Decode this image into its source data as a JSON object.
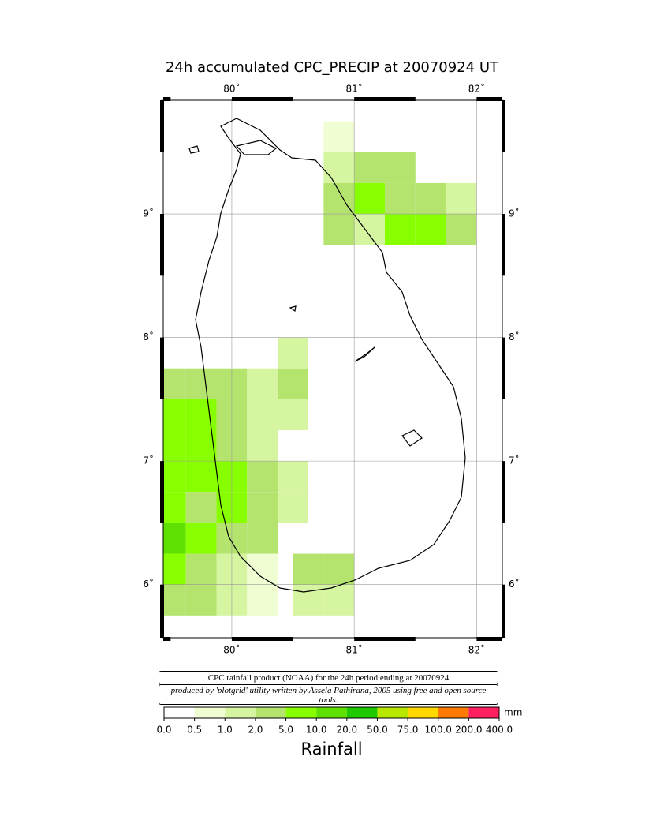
{
  "chart_data": {
    "type": "map",
    "title": "24h accumulated CPC_PRECIP  at 20070924 UT",
    "xlim": [
      79.44,
      82.21
    ],
    "ylim": [
      5.57,
      9.92
    ],
    "xticks": [
      {
        "value": 80,
        "label": "80˚"
      },
      {
        "value": 81,
        "label": "81˚"
      },
      {
        "value": 82,
        "label": "82˚"
      }
    ],
    "yticks": [
      {
        "value": 6,
        "label": "6˚"
      },
      {
        "value": 7,
        "label": "7˚"
      },
      {
        "value": 8,
        "label": "8˚"
      },
      {
        "value": 9,
        "label": "9˚"
      }
    ],
    "grid": true,
    "cell_size": 0.25,
    "rain_cells": [
      {
        "lon": 79.5,
        "lat": 7.625,
        "value": 3
      },
      {
        "lon": 79.75,
        "lat": 7.625,
        "value": 3
      },
      {
        "lon": 80.0,
        "lat": 7.625,
        "value": 2
      },
      {
        "lon": 80.25,
        "lat": 7.625,
        "value": 1
      },
      {
        "lon": 80.5,
        "lat": 7.625,
        "value": 2
      },
      {
        "lon": 80.5,
        "lat": 7.875,
        "value": 1
      },
      {
        "lon": 79.5,
        "lat": 7.375,
        "value": 5
      },
      {
        "lon": 79.75,
        "lat": 7.375,
        "value": 5
      },
      {
        "lon": 80.0,
        "lat": 7.375,
        "value": 3
      },
      {
        "lon": 80.25,
        "lat": 7.375,
        "value": 1.5
      },
      {
        "lon": 80.5,
        "lat": 7.375,
        "value": 1
      },
      {
        "lon": 79.5,
        "lat": 7.125,
        "value": 5
      },
      {
        "lon": 79.75,
        "lat": 7.125,
        "value": 5
      },
      {
        "lon": 80.0,
        "lat": 7.125,
        "value": 3
      },
      {
        "lon": 80.25,
        "lat": 7.125,
        "value": 1
      },
      {
        "lon": 79.5,
        "lat": 6.875,
        "value": 5
      },
      {
        "lon": 79.75,
        "lat": 6.875,
        "value": 5
      },
      {
        "lon": 80.0,
        "lat": 6.875,
        "value": 5
      },
      {
        "lon": 80.25,
        "lat": 6.875,
        "value": 2
      },
      {
        "lon": 80.5,
        "lat": 6.875,
        "value": 1
      },
      {
        "lon": 79.5,
        "lat": 6.625,
        "value": 5
      },
      {
        "lon": 79.75,
        "lat": 6.625,
        "value": 3
      },
      {
        "lon": 80.0,
        "lat": 6.625,
        "value": 5
      },
      {
        "lon": 80.25,
        "lat": 6.625,
        "value": 3
      },
      {
        "lon": 80.5,
        "lat": 6.625,
        "value": 1
      },
      {
        "lon": 79.5,
        "lat": 6.375,
        "value": 10
      },
      {
        "lon": 79.75,
        "lat": 6.375,
        "value": 5
      },
      {
        "lon": 80.0,
        "lat": 6.375,
        "value": 3
      },
      {
        "lon": 80.25,
        "lat": 6.375,
        "value": 2
      },
      {
        "lon": 79.5,
        "lat": 6.125,
        "value": 5
      },
      {
        "lon": 79.75,
        "lat": 6.125,
        "value": 2
      },
      {
        "lon": 80.0,
        "lat": 6.125,
        "value": 1
      },
      {
        "lon": 80.25,
        "lat": 6.125,
        "value": 0.8
      },
      {
        "lon": 79.5,
        "lat": 5.875,
        "value": 2
      },
      {
        "lon": 79.75,
        "lat": 5.875,
        "value": 2
      },
      {
        "lon": 80.0,
        "lat": 5.875,
        "value": 1
      },
      {
        "lon": 80.25,
        "lat": 5.875,
        "value": 0.8
      },
      {
        "lon": 80.875,
        "lat": 9.625,
        "value": 0.8
      },
      {
        "lon": 80.875,
        "lat": 9.375,
        "value": 1
      },
      {
        "lon": 81.125,
        "lat": 9.375,
        "value": 3
      },
      {
        "lon": 81.375,
        "lat": 9.375,
        "value": 2
      },
      {
        "lon": 80.875,
        "lat": 9.125,
        "value": 3
      },
      {
        "lon": 81.125,
        "lat": 9.125,
        "value": 5
      },
      {
        "lon": 81.375,
        "lat": 9.125,
        "value": 3
      },
      {
        "lon": 81.625,
        "lat": 9.125,
        "value": 2
      },
      {
        "lon": 81.875,
        "lat": 9.125,
        "value": 1.5
      },
      {
        "lon": 80.875,
        "lat": 8.875,
        "value": 2
      },
      {
        "lon": 81.125,
        "lat": 8.875,
        "value": 1
      },
      {
        "lon": 81.375,
        "lat": 8.875,
        "value": 5
      },
      {
        "lon": 81.625,
        "lat": 8.875,
        "value": 5
      },
      {
        "lon": 81.875,
        "lat": 8.875,
        "value": 2
      },
      {
        "lon": 80.625,
        "lat": 6.125,
        "value": 2
      },
      {
        "lon": 80.875,
        "lat": 6.125,
        "value": 2
      },
      {
        "lon": 80.625,
        "lat": 5.875,
        "value": 1
      },
      {
        "lon": 80.875,
        "lat": 5.875,
        "value": 1
      }
    ],
    "colorbar_ticks": [
      {
        "value": 0,
        "label": "0.0"
      },
      {
        "value": 0.5,
        "label": "0.5"
      },
      {
        "value": 1,
        "label": "1.0"
      },
      {
        "value": 2,
        "label": "2.0"
      },
      {
        "value": 5,
        "label": "5.0"
      },
      {
        "value": 10,
        "label": "10.0"
      },
      {
        "value": 20,
        "label": "20.0"
      },
      {
        "value": 50,
        "label": "50.0"
      },
      {
        "value": 75,
        "label": "75.0"
      },
      {
        "value": 100,
        "label": "100.0"
      },
      {
        "value": 200,
        "label": "200.0"
      },
      {
        "value": 400,
        "label": "400.0"
      }
    ],
    "colorbar_colors": [
      "#ffffff",
      "#f0fdd2",
      "#d6f5a0",
      "#b4e46e",
      "#88ff00",
      "#5ee000",
      "#20c800",
      "#b8e800",
      "#ffd800",
      "#ff7a00",
      "#ff2060"
    ],
    "colorbar_unit": "mm",
    "colorbar_label": "Rainfall",
    "credit_source": "CPC rainfall product (NOAA) for the 24h period ending at 20070924",
    "credit_author": "produced by 'plotgrid' utility written by Assela Pathirana, 2005 using free and open source tools."
  }
}
